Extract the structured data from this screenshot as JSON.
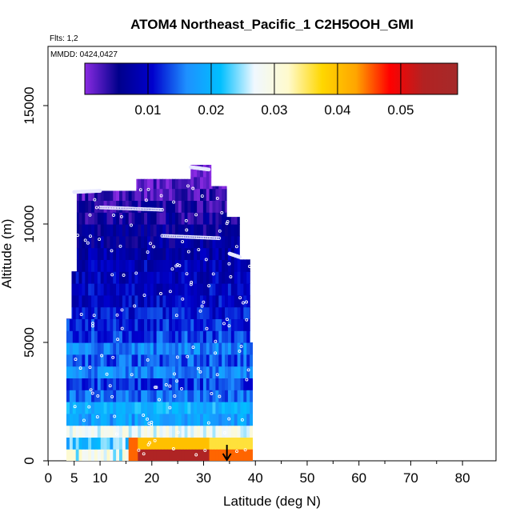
{
  "title": "ATOM4 Northeast_Pacific_1 C2H5OOH_GMI",
  "flights_label": "Flts: 1,2",
  "mmdd_label": "MMDD: 0424,0427",
  "chart_data": {
    "type": "heatmap",
    "title": "ATOM4 Northeast_Pacific_1 C2H5OOH_GMI",
    "xlabel": "Latitude (deg N)",
    "ylabel": "Altitude (m)",
    "xlim": [
      0,
      85
    ],
    "ylim": [
      0,
      17500
    ],
    "x_ticks": [
      0,
      5,
      10,
      20,
      30,
      40,
      50,
      60,
      70,
      80
    ],
    "x_tick_labels": [
      "0",
      "5",
      "10",
      "20",
      "30",
      "40",
      "50",
      "60",
      "70",
      "80"
    ],
    "y_ticks": [
      0,
      5000,
      10000,
      15000
    ],
    "y_tick_labels": [
      "0",
      "5000",
      "10000",
      "15000"
    ],
    "colorbar": {
      "range": [
        0,
        0.059
      ],
      "ticks": [
        0.01,
        0.02,
        0.03,
        0.04,
        0.05
      ],
      "tick_labels": [
        "0.01",
        "0.02",
        "0.03",
        "0.04",
        "0.05"
      ],
      "colors": [
        "#8a2be2",
        "#00008b",
        "#0000cd",
        "#1e90ff",
        "#00bfff",
        "#f0f8ff",
        "#fffacd",
        "#ffd700",
        "#ffa500",
        "#ff0000",
        "#b22222",
        "#a52a2a"
      ]
    },
    "curtain_columns": [
      {
        "lat": 3.5,
        "bottom": 0,
        "top": 6000
      },
      {
        "lat": 4.5,
        "bottom": 0,
        "top": 8000
      },
      {
        "lat": 5.5,
        "bottom": 0,
        "top": 11400
      },
      {
        "lat": 17,
        "bottom": 0,
        "top": 11900
      },
      {
        "lat": 25,
        "bottom": 0,
        "top": 11900
      },
      {
        "lat": 27.5,
        "bottom": 0,
        "top": 12500
      },
      {
        "lat": 31.5,
        "bottom": 0,
        "top": 11600
      },
      {
        "lat": 34.5,
        "bottom": 0,
        "top": 10300
      },
      {
        "lat": 37,
        "bottom": 0,
        "top": 8500
      },
      {
        "lat": 39,
        "bottom": 0,
        "top": 5000
      },
      {
        "lat": 39.5,
        "bottom": 0,
        "top": 4000
      }
    ],
    "vertical_profile": [
      {
        "alt": 250,
        "value": 0.05
      },
      {
        "alt": 750,
        "value": 0.04
      },
      {
        "alt": 1250,
        "value": 0.028
      },
      {
        "alt": 1750,
        "value": 0.018
      },
      {
        "alt": 2250,
        "value": 0.02
      },
      {
        "alt": 2750,
        "value": 0.015
      },
      {
        "alt": 3250,
        "value": 0.013
      },
      {
        "alt": 3750,
        "value": 0.016
      },
      {
        "alt": 4250,
        "value": 0.014
      },
      {
        "alt": 4750,
        "value": 0.016
      },
      {
        "alt": 5250,
        "value": 0.013
      },
      {
        "alt": 5750,
        "value": 0.012
      },
      {
        "alt": 6250,
        "value": 0.011
      },
      {
        "alt": 6750,
        "value": 0.01
      },
      {
        "alt": 7250,
        "value": 0.01
      },
      {
        "alt": 7750,
        "value": 0.009
      },
      {
        "alt": 8250,
        "value": 0.009
      },
      {
        "alt": 8750,
        "value": 0.008
      },
      {
        "alt": 9250,
        "value": 0.007
      },
      {
        "alt": 9750,
        "value": 0.006
      },
      {
        "alt": 10250,
        "value": 0.005
      },
      {
        "alt": 10750,
        "value": 0.004
      },
      {
        "alt": 11250,
        "value": 0.003
      },
      {
        "alt": 11750,
        "value": 0.002
      },
      {
        "alt": 12250,
        "value": 0.001
      }
    ],
    "flight_tracks": [
      {
        "lat_start": 5,
        "lat_end": 10,
        "alt_start": 11350,
        "alt_end": 11400
      },
      {
        "lat_start": 10,
        "lat_end": 22,
        "alt_start": 10700,
        "alt_end": 10600
      },
      {
        "lat_start": 22,
        "lat_end": 33,
        "alt_start": 9500,
        "alt_end": 9400
      },
      {
        "lat_start": 27.5,
        "lat_end": 31,
        "alt_start": 12400,
        "alt_end": 12300
      },
      {
        "lat_start": 35,
        "lat_end": 37,
        "alt_start": 8750,
        "alt_end": 8600
      }
    ],
    "marker": {
      "lat": 34.5,
      "alt": 0,
      "symbol": "arrow"
    }
  }
}
